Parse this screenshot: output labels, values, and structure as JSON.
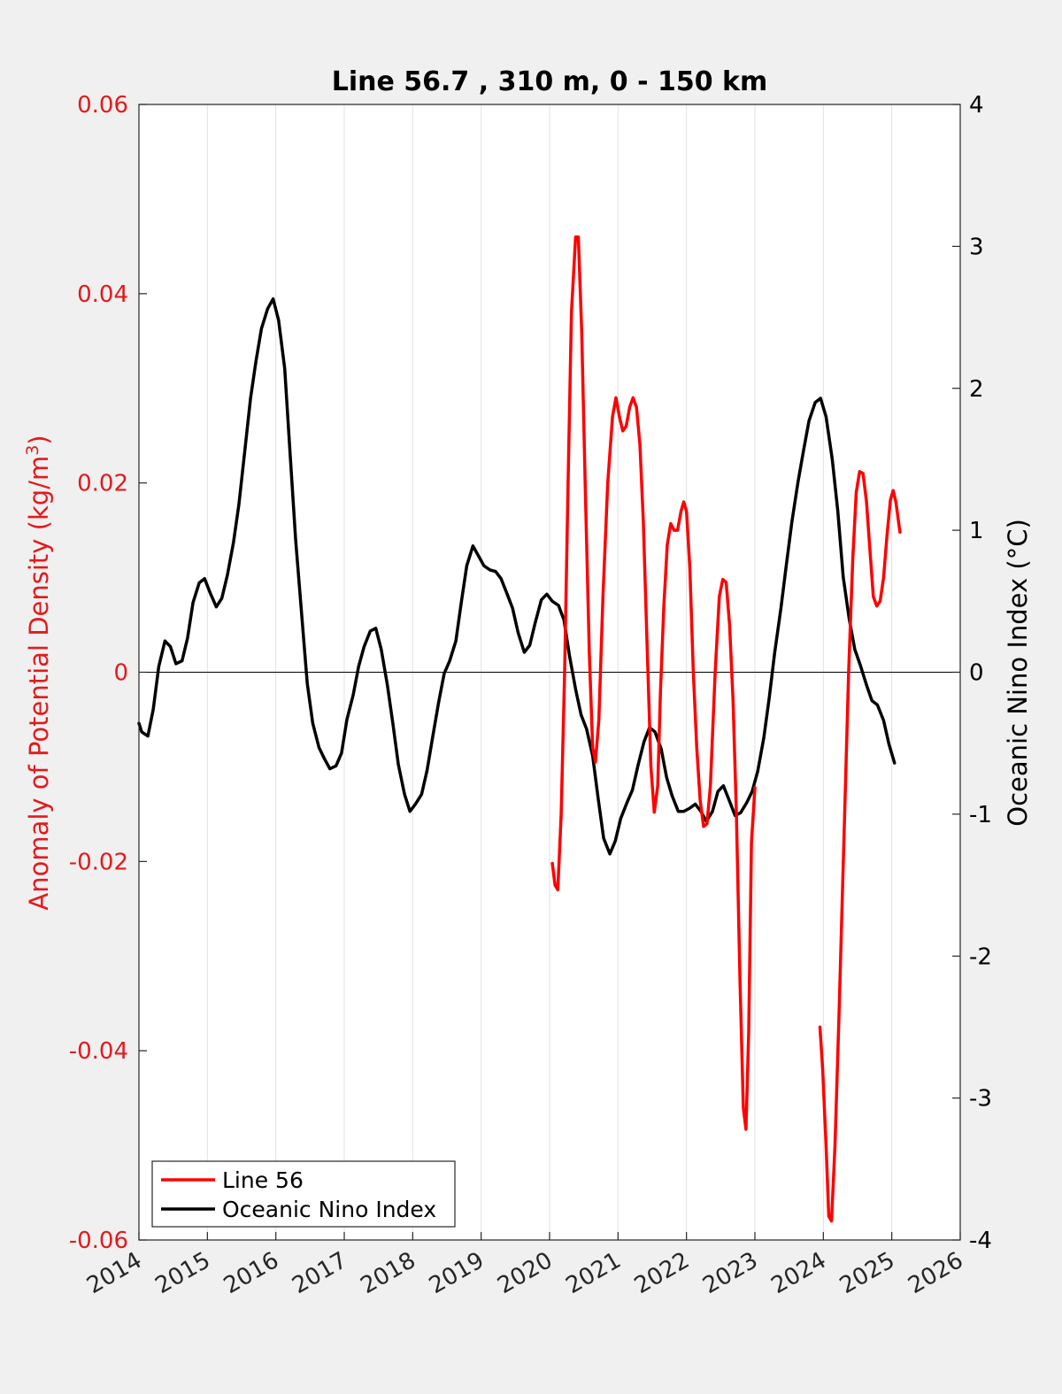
{
  "chart_data": {
    "type": "line",
    "title": "Line 56.7 , 310 m, 0 - 150 km",
    "xlim": [
      2014,
      2026
    ],
    "x_ticks": [
      "2014",
      "2015",
      "2016",
      "2017",
      "2018",
      "2019",
      "2020",
      "2021",
      "2022",
      "2023",
      "2024",
      "2025",
      "2026"
    ],
    "y_left": {
      "label": "Anomaly of Potential Density (kg/m",
      "label_sup": "3",
      "label_end": ")",
      "lim": [
        -0.06,
        0.06
      ],
      "ticks": [
        "-0.06",
        "-0.04",
        "-0.02",
        "0",
        "0.02",
        "0.04",
        "0.06"
      ],
      "color": "#e31a1c"
    },
    "y_right": {
      "label": "Oceanic Nino Index (°C)",
      "lim": [
        -4,
        4
      ],
      "ticks": [
        "-4",
        "-3",
        "-2",
        "-1",
        "0",
        "1",
        "2",
        "3",
        "4"
      ],
      "color": "#000000"
    },
    "grid": "vertical",
    "zero_line": true,
    "legend_position": "bottom-left",
    "series": [
      {
        "name": "Line 56",
        "axis": "left",
        "color": "#ff0000",
        "segments": [
          [
            [
              2020.04,
              -0.0202
            ],
            [
              2020.08,
              -0.0225
            ],
            [
              2020.12,
              -0.023
            ],
            [
              2020.17,
              -0.015
            ],
            [
              2020.22,
              0.0
            ],
            [
              2020.27,
              0.02
            ],
            [
              2020.32,
              0.038
            ],
            [
              2020.38,
              0.046
            ],
            [
              2020.42,
              0.046
            ],
            [
              2020.47,
              0.036
            ],
            [
              2020.52,
              0.02
            ],
            [
              2020.58,
              0.002
            ],
            [
              2020.63,
              -0.008
            ],
            [
              2020.67,
              -0.0095
            ],
            [
              2020.72,
              -0.005
            ],
            [
              2020.78,
              0.008
            ],
            [
              2020.85,
              0.02
            ],
            [
              2020.92,
              0.027
            ],
            [
              2020.97,
              0.029
            ],
            [
              2021.02,
              0.027
            ],
            [
              2021.07,
              0.0255
            ],
            [
              2021.12,
              0.026
            ],
            [
              2021.17,
              0.028
            ],
            [
              2021.22,
              0.029
            ],
            [
              2021.27,
              0.028
            ],
            [
              2021.32,
              0.024
            ],
            [
              2021.37,
              0.016
            ],
            [
              2021.42,
              0.004
            ],
            [
              2021.48,
              -0.01
            ],
            [
              2021.53,
              -0.0148
            ],
            [
              2021.58,
              -0.012
            ],
            [
              2021.62,
              -0.002
            ],
            [
              2021.67,
              0.007
            ],
            [
              2021.72,
              0.0135
            ],
            [
              2021.77,
              0.0157
            ],
            [
              2021.82,
              0.015
            ],
            [
              2021.87,
              0.015
            ],
            [
              2021.92,
              0.017
            ],
            [
              2021.96,
              0.018
            ],
            [
              2022.0,
              0.017
            ],
            [
              2022.05,
              0.011
            ],
            [
              2022.1,
              0.0
            ],
            [
              2022.15,
              -0.008
            ],
            [
              2022.2,
              -0.0135
            ],
            [
              2022.25,
              -0.0163
            ],
            [
              2022.3,
              -0.016
            ],
            [
              2022.35,
              -0.012
            ],
            [
              2022.42,
              0.0
            ],
            [
              2022.48,
              0.008
            ],
            [
              2022.53,
              0.0098
            ],
            [
              2022.58,
              0.0095
            ],
            [
              2022.63,
              0.005
            ],
            [
              2022.68,
              -0.003
            ],
            [
              2022.73,
              -0.015
            ],
            [
              2022.78,
              -0.032
            ],
            [
              2022.83,
              -0.046
            ],
            [
              2022.87,
              -0.0483
            ],
            [
              2022.91,
              -0.038
            ],
            [
              2022.95,
              -0.018
            ],
            [
              2023.0,
              -0.0122
            ]
          ],
          [
            [
              2023.95,
              -0.0375
            ],
            [
              2023.99,
              -0.042
            ],
            [
              2024.04,
              -0.05
            ],
            [
              2024.08,
              -0.0575
            ],
            [
              2024.12,
              -0.058
            ],
            [
              2024.17,
              -0.05
            ],
            [
              2024.23,
              -0.036
            ],
            [
              2024.3,
              -0.018
            ],
            [
              2024.37,
              0.0
            ],
            [
              2024.43,
              0.012
            ],
            [
              2024.48,
              0.019
            ],
            [
              2024.53,
              0.0212
            ],
            [
              2024.58,
              0.021
            ],
            [
              2024.63,
              0.018
            ],
            [
              2024.68,
              0.013
            ],
            [
              2024.73,
              0.008
            ],
            [
              2024.78,
              0.007
            ],
            [
              2024.83,
              0.0075
            ],
            [
              2024.88,
              0.01
            ],
            [
              2024.93,
              0.0145
            ],
            [
              2024.98,
              0.0182
            ],
            [
              2025.02,
              0.0192
            ],
            [
              2025.06,
              0.018
            ],
            [
              2025.12,
              0.0148
            ]
          ]
        ]
      },
      {
        "name": "Oceanic Nino Index",
        "axis": "right",
        "color": "#000000",
        "segments": [
          [
            [
              2014.0,
              -0.36
            ],
            [
              2014.04,
              -0.42
            ],
            [
              2014.13,
              -0.45
            ],
            [
              2014.21,
              -0.26
            ],
            [
              2014.29,
              0.04
            ],
            [
              2014.38,
              0.22
            ],
            [
              2014.46,
              0.18
            ],
            [
              2014.54,
              0.06
            ],
            [
              2014.63,
              0.08
            ],
            [
              2014.71,
              0.24
            ],
            [
              2014.79,
              0.49
            ],
            [
              2014.88,
              0.63
            ],
            [
              2014.96,
              0.66
            ],
            [
              2015.04,
              0.56
            ],
            [
              2015.13,
              0.46
            ],
            [
              2015.21,
              0.52
            ],
            [
              2015.29,
              0.68
            ],
            [
              2015.38,
              0.91
            ],
            [
              2015.46,
              1.18
            ],
            [
              2015.54,
              1.53
            ],
            [
              2015.63,
              1.93
            ],
            [
              2015.71,
              2.19
            ],
            [
              2015.79,
              2.42
            ],
            [
              2015.88,
              2.56
            ],
            [
              2015.96,
              2.63
            ],
            [
              2016.04,
              2.48
            ],
            [
              2016.13,
              2.14
            ],
            [
              2016.21,
              1.53
            ],
            [
              2016.29,
              0.93
            ],
            [
              2016.38,
              0.39
            ],
            [
              2016.46,
              -0.08
            ],
            [
              2016.54,
              -0.36
            ],
            [
              2016.63,
              -0.53
            ],
            [
              2016.71,
              -0.61
            ],
            [
              2016.79,
              -0.68
            ],
            [
              2016.88,
              -0.66
            ],
            [
              2016.96,
              -0.57
            ],
            [
              2017.04,
              -0.33
            ],
            [
              2017.13,
              -0.16
            ],
            [
              2017.21,
              0.04
            ],
            [
              2017.29,
              0.18
            ],
            [
              2017.38,
              0.29
            ],
            [
              2017.46,
              0.31
            ],
            [
              2017.54,
              0.16
            ],
            [
              2017.63,
              -0.09
            ],
            [
              2017.71,
              -0.36
            ],
            [
              2017.79,
              -0.65
            ],
            [
              2017.88,
              -0.86
            ],
            [
              2017.96,
              -0.98
            ],
            [
              2018.04,
              -0.93
            ],
            [
              2018.13,
              -0.86
            ],
            [
              2018.21,
              -0.69
            ],
            [
              2018.29,
              -0.46
            ],
            [
              2018.38,
              -0.21
            ],
            [
              2018.46,
              -0.01
            ],
            [
              2018.54,
              0.08
            ],
            [
              2018.63,
              0.22
            ],
            [
              2018.71,
              0.49
            ],
            [
              2018.79,
              0.75
            ],
            [
              2018.88,
              0.89
            ],
            [
              2018.96,
              0.82
            ],
            [
              2019.04,
              0.75
            ],
            [
              2019.13,
              0.72
            ],
            [
              2019.21,
              0.71
            ],
            [
              2019.29,
              0.66
            ],
            [
              2019.38,
              0.55
            ],
            [
              2019.46,
              0.45
            ],
            [
              2019.54,
              0.28
            ],
            [
              2019.63,
              0.14
            ],
            [
              2019.71,
              0.19
            ],
            [
              2019.79,
              0.35
            ],
            [
              2019.88,
              0.51
            ],
            [
              2019.96,
              0.55
            ],
            [
              2020.04,
              0.5
            ],
            [
              2020.13,
              0.47
            ],
            [
              2020.21,
              0.37
            ],
            [
              2020.29,
              0.12
            ],
            [
              2020.38,
              -0.12
            ],
            [
              2020.46,
              -0.3
            ],
            [
              2020.54,
              -0.4
            ],
            [
              2020.63,
              -0.59
            ],
            [
              2020.71,
              -0.89
            ],
            [
              2020.79,
              -1.17
            ],
            [
              2020.88,
              -1.28
            ],
            [
              2020.96,
              -1.19
            ],
            [
              2021.04,
              -1.03
            ],
            [
              2021.13,
              -0.92
            ],
            [
              2021.21,
              -0.83
            ],
            [
              2021.29,
              -0.66
            ],
            [
              2021.38,
              -0.49
            ],
            [
              2021.46,
              -0.39
            ],
            [
              2021.54,
              -0.42
            ],
            [
              2021.63,
              -0.54
            ],
            [
              2021.71,
              -0.74
            ],
            [
              2021.79,
              -0.87
            ],
            [
              2021.88,
              -0.98
            ],
            [
              2021.96,
              -0.98
            ],
            [
              2022.04,
              -0.96
            ],
            [
              2022.13,
              -0.93
            ],
            [
              2022.21,
              -0.98
            ],
            [
              2022.29,
              -1.05
            ],
            [
              2022.38,
              -0.98
            ],
            [
              2022.46,
              -0.84
            ],
            [
              2022.54,
              -0.8
            ],
            [
              2022.63,
              -0.91
            ],
            [
              2022.71,
              -1.01
            ],
            [
              2022.79,
              -0.99
            ],
            [
              2022.88,
              -0.92
            ],
            [
              2022.96,
              -0.84
            ],
            [
              2023.04,
              -0.7
            ],
            [
              2023.13,
              -0.46
            ],
            [
              2023.21,
              -0.18
            ],
            [
              2023.29,
              0.14
            ],
            [
              2023.38,
              0.45
            ],
            [
              2023.46,
              0.76
            ],
            [
              2023.54,
              1.06
            ],
            [
              2023.63,
              1.34
            ],
            [
              2023.71,
              1.56
            ],
            [
              2023.79,
              1.77
            ],
            [
              2023.88,
              1.9
            ],
            [
              2023.96,
              1.93
            ],
            [
              2024.04,
              1.8
            ],
            [
              2024.13,
              1.5
            ],
            [
              2024.21,
              1.14
            ],
            [
              2024.29,
              0.67
            ],
            [
              2024.38,
              0.37
            ],
            [
              2024.46,
              0.16
            ],
            [
              2024.54,
              0.05
            ],
            [
              2024.63,
              -0.09
            ],
            [
              2024.71,
              -0.2
            ],
            [
              2024.79,
              -0.23
            ],
            [
              2024.88,
              -0.34
            ],
            [
              2024.96,
              -0.51
            ],
            [
              2025.04,
              -0.64
            ]
          ]
        ]
      }
    ]
  }
}
